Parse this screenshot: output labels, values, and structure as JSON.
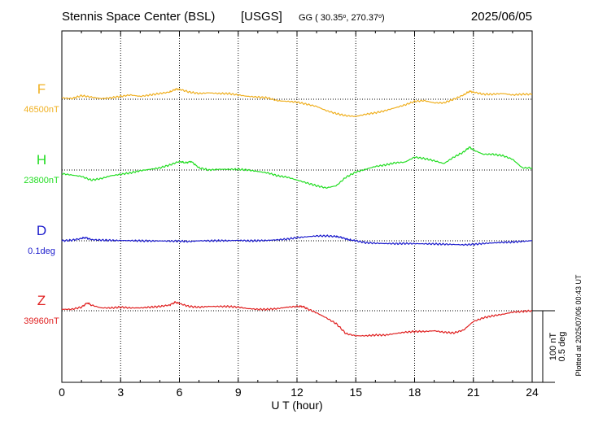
{
  "header": {
    "station": "Stennis Space Center (BSL)",
    "network": "[USGS]",
    "coords_prefix": "GG ( 30.35",
    "coords_mid": ", 270.37",
    "coords_suffix": ")",
    "date": "2025/06/05"
  },
  "footer": {
    "plotted": "Plotted at 2025/07/06 00:43 UT"
  },
  "scale": {
    "nt": "100 nT",
    "deg": "0.5 deg"
  },
  "chart_data": {
    "type": "line",
    "title": "Stennis Space Center (BSL) [USGS]",
    "xlabel": "U T (hour)",
    "xlim": [
      0,
      24
    ],
    "xticks": [
      "0",
      "3",
      "6",
      "9",
      "12",
      "15",
      "18",
      "21",
      "24"
    ],
    "grid": true,
    "scale_nT_per_bar": 100,
    "scale_deg_per_bar": 0.5,
    "series": [
      {
        "name": "F",
        "baseline_label": "46500nT",
        "unit": "nT",
        "baseline": 46500,
        "color": "#f0b020",
        "x": [
          0,
          0.5,
          1,
          1.5,
          2,
          2.5,
          3,
          3.5,
          4,
          4.5,
          5,
          5.5,
          5.8,
          6,
          6.5,
          7,
          7.5,
          8,
          8.5,
          9,
          9.5,
          10,
          10.5,
          11,
          11.5,
          12,
          12.5,
          13,
          13.5,
          14,
          14.5,
          15,
          15.5,
          16,
          16.5,
          17,
          17.5,
          18,
          18.5,
          19,
          19.5,
          20,
          20.5,
          20.8,
          21,
          21.5,
          22,
          22.5,
          23,
          23.5,
          24
        ],
        "values": [
          46502,
          46501,
          46505,
          46503,
          46501,
          46502,
          46504,
          46506,
          46504,
          46506,
          46508,
          46510,
          46514,
          46514,
          46510,
          46508,
          46509,
          46508,
          46508,
          46506,
          46504,
          46503,
          46502,
          46498,
          46497,
          46496,
          46493,
          46490,
          46484,
          46480,
          46477,
          46476,
          46479,
          46481,
          46484,
          46488,
          46492,
          46497,
          46498,
          46495,
          46495,
          46500,
          46506,
          46511,
          46510,
          46507,
          46507,
          46508,
          46506,
          46507,
          46507
        ]
      },
      {
        "name": "H",
        "baseline_label": "23800nT",
        "unit": "nT",
        "baseline": 23800,
        "color": "#22dd22",
        "x": [
          0,
          0.5,
          1,
          1.5,
          2,
          2.5,
          3,
          3.5,
          4,
          4.5,
          5,
          5.5,
          6,
          6.3,
          6.6,
          7,
          7.5,
          8,
          8.5,
          9,
          9.5,
          10,
          10.5,
          11,
          11.5,
          12,
          12.5,
          13,
          13.5,
          14,
          14.5,
          15,
          15.5,
          16,
          16.5,
          17,
          17.5,
          18,
          18.5,
          19,
          19.5,
          20,
          20.5,
          20.8,
          21,
          21.5,
          22,
          22.5,
          23,
          23.5,
          24
        ],
        "values": [
          23795,
          23793,
          23791,
          23786,
          23788,
          23792,
          23794,
          23796,
          23799,
          23801,
          23803,
          23807,
          23812,
          23810,
          23812,
          23803,
          23800,
          23801,
          23801,
          23801,
          23800,
          23798,
          23796,
          23792,
          23790,
          23786,
          23782,
          23778,
          23775,
          23778,
          23790,
          23797,
          23801,
          23805,
          23807,
          23810,
          23811,
          23818,
          23816,
          23813,
          23809,
          23818,
          23825,
          23832,
          23828,
          23822,
          23822,
          23820,
          23815,
          23803,
          23803
        ]
      },
      {
        "name": "D",
        "baseline_label": "0.1deg",
        "unit": "deg",
        "baseline": 0.1,
        "color": "#1a1acc",
        "x": [
          0,
          0.5,
          1,
          1.2,
          1.5,
          2,
          2.5,
          3,
          3.5,
          4,
          4.5,
          5,
          5.5,
          6,
          6.5,
          7,
          7.5,
          8,
          8.5,
          9,
          9.5,
          10,
          10.5,
          11,
          11.5,
          12,
          12.5,
          13,
          13.5,
          14,
          14.3,
          14.6,
          15,
          15.5,
          16,
          16.5,
          17,
          17.5,
          18,
          18.5,
          19,
          19.5,
          20,
          20.5,
          21,
          21.5,
          22,
          22.5,
          23,
          23.5,
          24
        ],
        "values": [
          0.1,
          0.104,
          0.116,
          0.123,
          0.108,
          0.105,
          0.103,
          0.102,
          0.101,
          0.1,
          0.099,
          0.099,
          0.098,
          0.098,
          0.095,
          0.1,
          0.1,
          0.101,
          0.101,
          0.103,
          0.1,
          0.101,
          0.103,
          0.107,
          0.112,
          0.122,
          0.128,
          0.134,
          0.134,
          0.13,
          0.122,
          0.109,
          0.1,
          0.087,
          0.083,
          0.081,
          0.08,
          0.081,
          0.08,
          0.079,
          0.078,
          0.076,
          0.074,
          0.072,
          0.075,
          0.081,
          0.085,
          0.089,
          0.091,
          0.096,
          0.101
        ]
      },
      {
        "name": "Z",
        "baseline_label": "39960nT",
        "unit": "nT",
        "baseline": 39960,
        "color": "#e02020",
        "x": [
          0,
          0.5,
          1,
          1.3,
          1.5,
          2,
          2.5,
          3,
          3.5,
          4,
          4.5,
          5,
          5.5,
          5.8,
          6,
          6.5,
          7,
          7.5,
          8,
          8.5,
          9,
          9.5,
          10,
          10.5,
          11,
          11.5,
          12,
          12.3,
          12.5,
          13,
          13.5,
          14,
          14.5,
          15,
          15.5,
          16,
          16.5,
          17,
          17.5,
          18,
          18.5,
          19,
          19.5,
          20,
          20.5,
          21,
          21.5,
          22,
          22.5,
          23,
          23.5,
          24
        ],
        "values": [
          39962,
          39962,
          39965,
          39971,
          39968,
          39964,
          39964,
          39965,
          39964,
          39964,
          39965,
          39966,
          39968,
          39972,
          39970,
          39966,
          39965,
          39966,
          39966,
          39966,
          39965,
          39963,
          39962,
          39962,
          39963,
          39965,
          39966,
          39966,
          39963,
          39957,
          39950,
          39942,
          39928,
          39925,
          39925,
          39926,
          39926,
          39928,
          39930,
          39931,
          39931,
          39932,
          39930,
          39929,
          39933,
          39945,
          39950,
          39953,
          39955,
          39958,
          39959,
          39960
        ]
      }
    ]
  }
}
